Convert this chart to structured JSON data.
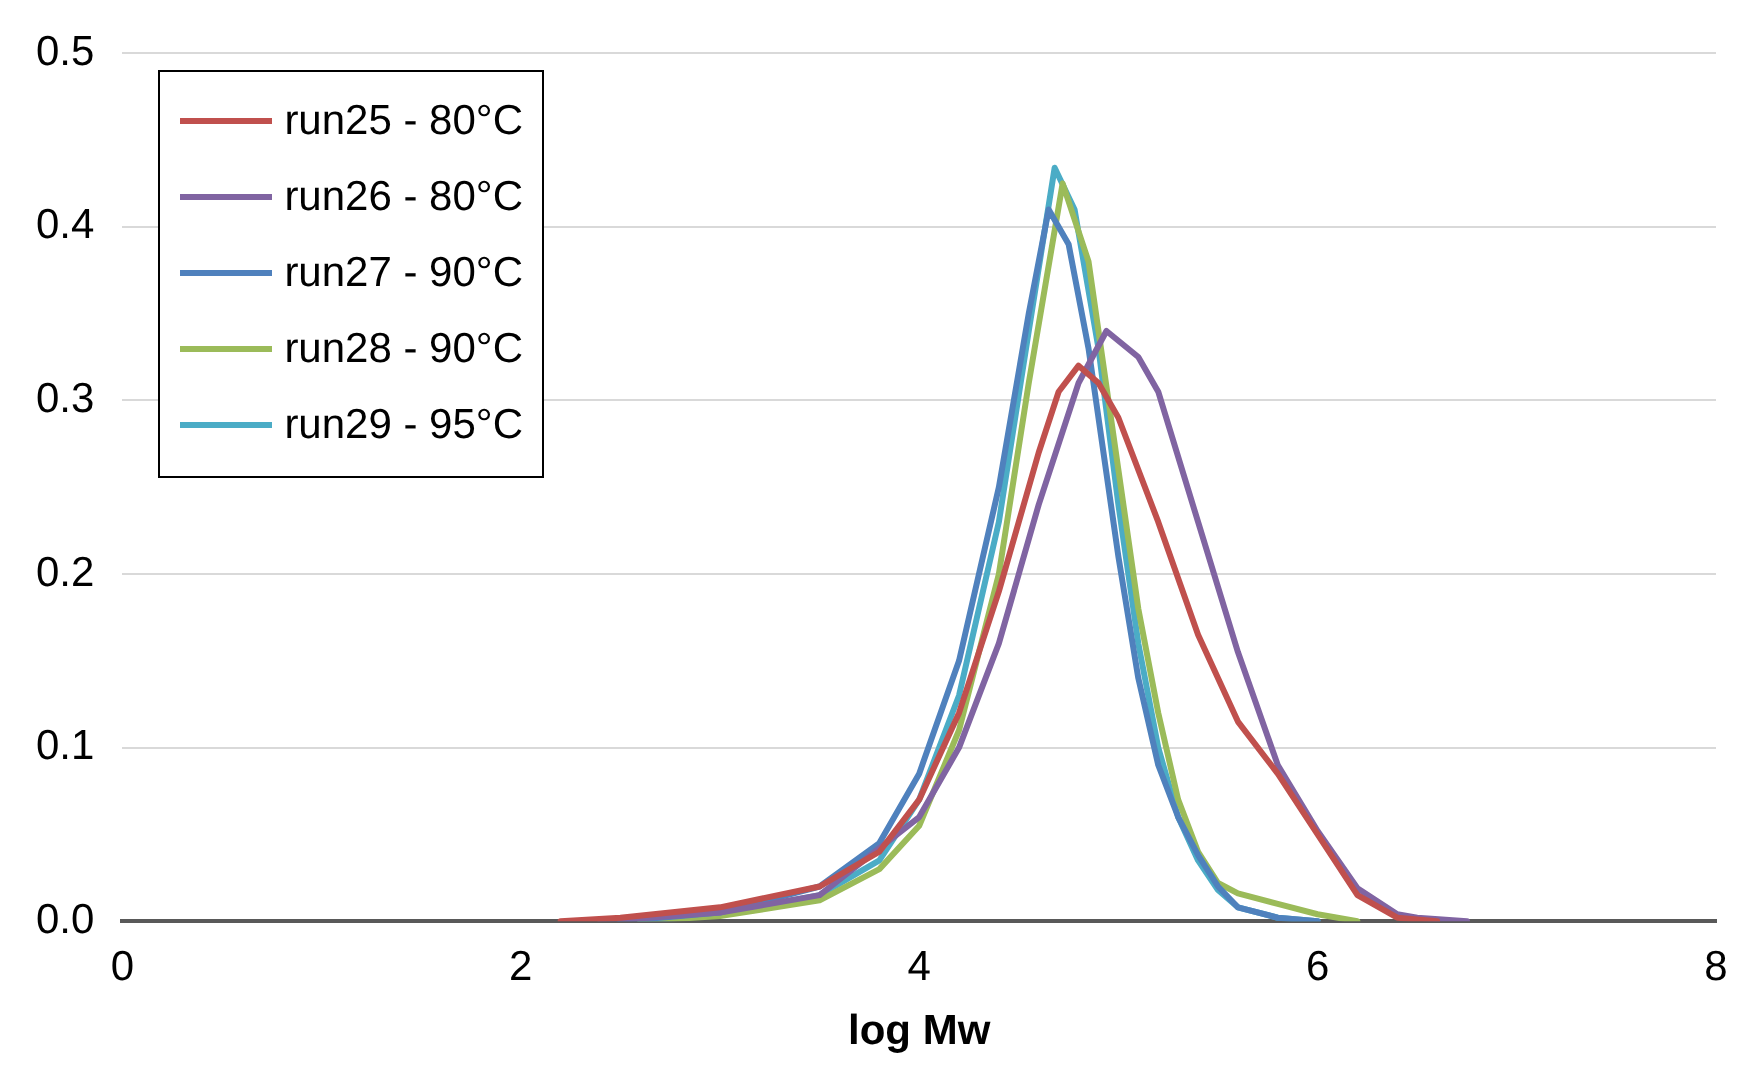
{
  "chart_data": {
    "type": "line",
    "xlabel": "log Mw",
    "xlim": [
      0,
      8
    ],
    "xticks": [
      0,
      2,
      4,
      6,
      8
    ],
    "ylim": [
      0,
      0.5
    ],
    "yticks": [
      {
        "value": 0,
        "label": "0.0"
      },
      0.1,
      0.2,
      0.3,
      0.4,
      0.5
    ],
    "grid": "y",
    "legend": "top left",
    "marker": "none",
    "line_style": "solid",
    "series": [
      {
        "name": "run25 - 80°C",
        "color": "#c0504d",
        "x": [
          2.2,
          2.5,
          3.0,
          3.5,
          3.8,
          4.0,
          4.2,
          4.4,
          4.6,
          4.7,
          4.8,
          4.9,
          5.0,
          5.2,
          5.4,
          5.6,
          5.8,
          6.0,
          6.2,
          6.4,
          6.6
        ],
        "values": [
          0,
          0.002,
          0.008,
          0.02,
          0.04,
          0.07,
          0.12,
          0.19,
          0.27,
          0.305,
          0.32,
          0.31,
          0.29,
          0.23,
          0.165,
          0.115,
          0.085,
          0.05,
          0.015,
          0.002,
          0
        ]
      },
      {
        "name": "run26 - 80°C",
        "color": "#8064a2",
        "x": [
          2.4,
          3.0,
          3.5,
          4.0,
          4.2,
          4.4,
          4.6,
          4.8,
          4.94,
          5.1,
          5.2,
          5.4,
          5.6,
          5.8,
          6.0,
          6.2,
          6.4,
          6.5,
          6.75
        ],
        "values": [
          0,
          0.005,
          0.015,
          0.06,
          0.1,
          0.16,
          0.24,
          0.31,
          0.34,
          0.325,
          0.305,
          0.23,
          0.155,
          0.09,
          0.052,
          0.019,
          0.004,
          0.002,
          0
        ]
      },
      {
        "name": "run27 - 90°C",
        "color": "#4f81bd",
        "x": [
          2.5,
          3.0,
          3.5,
          3.8,
          4.0,
          4.2,
          4.4,
          4.55,
          4.65,
          4.75,
          4.85,
          5.0,
          5.1,
          5.2,
          5.3,
          5.4,
          5.5,
          5.6,
          5.8,
          6.0
        ],
        "values": [
          0,
          0.005,
          0.02,
          0.045,
          0.085,
          0.15,
          0.25,
          0.35,
          0.41,
          0.39,
          0.33,
          0.21,
          0.14,
          0.09,
          0.06,
          0.038,
          0.02,
          0.008,
          0.002,
          0
        ]
      },
      {
        "name": "run28 - 90°C",
        "color": "#9bbb59",
        "x": [
          2.6,
          3.0,
          3.5,
          3.8,
          4.0,
          4.2,
          4.4,
          4.55,
          4.72,
          4.85,
          5.0,
          5.1,
          5.2,
          5.3,
          5.4,
          5.5,
          5.6,
          5.8,
          6.0,
          6.2
        ],
        "values": [
          0,
          0.003,
          0.012,
          0.03,
          0.055,
          0.11,
          0.2,
          0.31,
          0.425,
          0.38,
          0.26,
          0.18,
          0.12,
          0.07,
          0.04,
          0.022,
          0.016,
          0.01,
          0.004,
          0
        ]
      },
      {
        "name": "run29 - 95°C",
        "color": "#4bacc6",
        "x": [
          2.6,
          3.0,
          3.5,
          3.8,
          4.0,
          4.2,
          4.4,
          4.55,
          4.68,
          4.78,
          4.9,
          5.0,
          5.1,
          5.2,
          5.3,
          5.4,
          5.5,
          5.6,
          5.8,
          6.0
        ],
        "values": [
          0,
          0.004,
          0.015,
          0.035,
          0.07,
          0.13,
          0.23,
          0.34,
          0.434,
          0.41,
          0.33,
          0.24,
          0.16,
          0.1,
          0.06,
          0.035,
          0.018,
          0.008,
          0.002,
          0
        ]
      }
    ]
  }
}
